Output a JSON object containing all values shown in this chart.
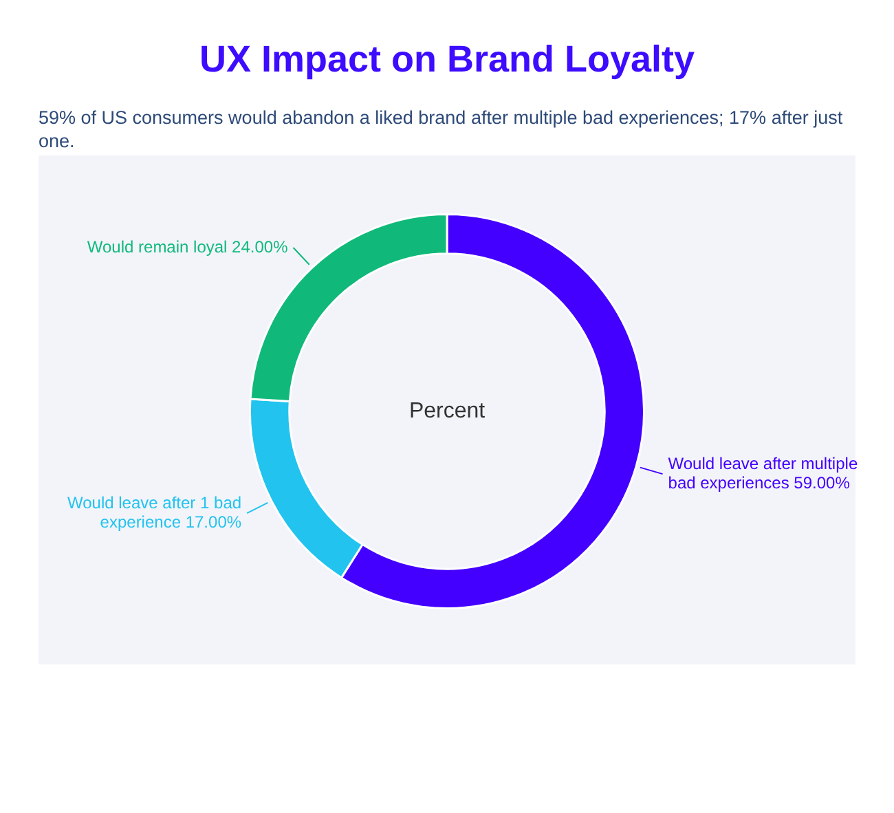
{
  "chart_data": {
    "type": "donut",
    "title": "UX Impact on Brand Loyalty",
    "subtitle": "59% of US consumers would abandon a liked brand after multiple bad experiences; 17% after just one.",
    "categories": [
      "Would leave after multiple bad experiences",
      "Would leave after 1 bad experience",
      "Would remain loyal"
    ],
    "values": [
      59,
      17,
      24
    ],
    "colors": [
      "#4400ff",
      "#22c3ee",
      "#10b97a"
    ],
    "value_labels": [
      "59.00%",
      "17.00%",
      "24.00%"
    ],
    "annotations": [
      "Percent"
    ],
    "legend": false
  }
}
